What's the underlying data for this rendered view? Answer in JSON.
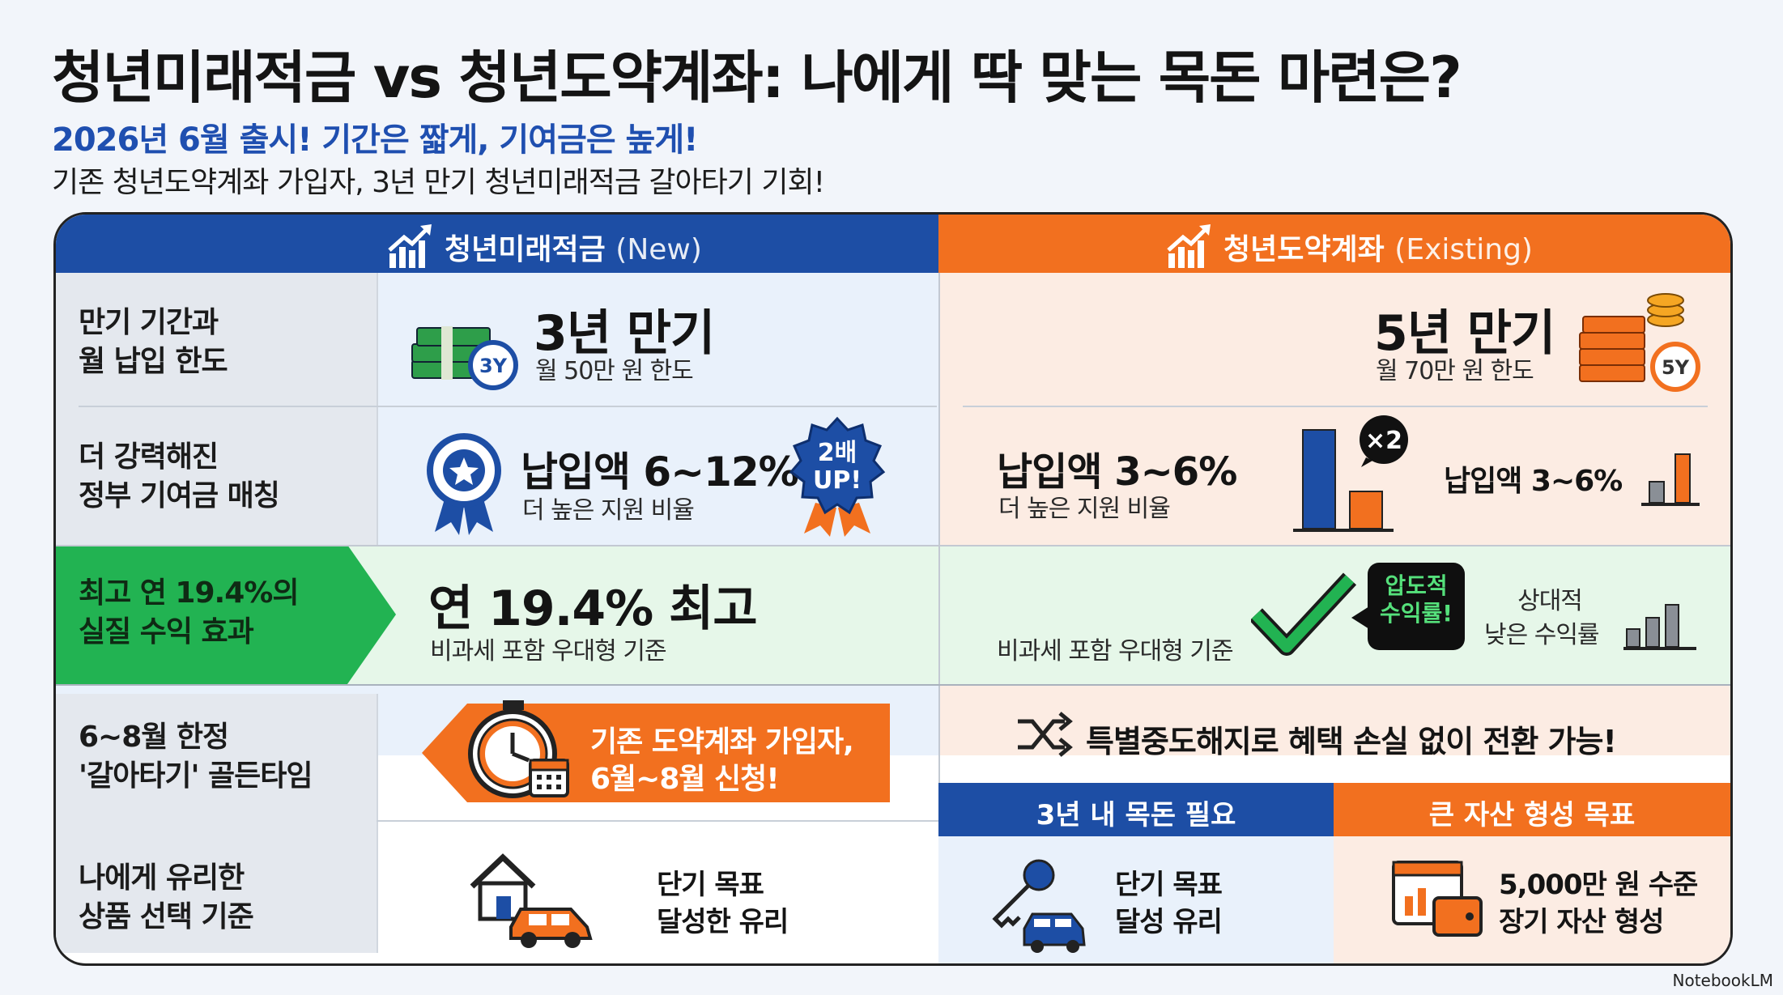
{
  "header": {
    "title": "청년미래적금 vs 청년도약계좌: 나에게 딱 맞는 목돈 마련은?",
    "subtitle": "2026년 6월 출시! 기간은 짧게, 기여금은 높게!",
    "description": "기존 청년도약계좌 가입자, 3년 만기 청년미래적금 갈아타기 기회!"
  },
  "columns": {
    "left": {
      "name": "청년미래적금",
      "tag": "(New)"
    },
    "right": {
      "name": "청년도약계좌",
      "tag": "(Existing)"
    }
  },
  "rows": {
    "term": {
      "label_line1": "만기 기간과",
      "label_line2": "월 납입 한도",
      "left_main": "3년 만기",
      "left_sub": "월 50만 원 한도",
      "left_icon_text": "3Y",
      "right_main": "5년 만기",
      "right_sub": "월 70만 원 한도",
      "right_icon_text": "5Y"
    },
    "matching": {
      "label_line1": "더 강력해진",
      "label_line2": "정부 기여금 매칭",
      "left_main": "납입액 6~12%",
      "left_sub": "더 높은 지원 비율",
      "badge_line1": "2배",
      "badge_line2": "UP!",
      "right_main": "납입액 3~6%",
      "right_sub": "더 높은 지원 비율",
      "multiplier": "×2",
      "right_side_text": "납입액 3~6%"
    },
    "return": {
      "label_line1": "최고 연 19.4%의",
      "label_line2": "실질 수익 효과",
      "left_main": "연 19.4% 최고",
      "left_sub": "비과세 포함 우대형 기준",
      "right_sub": "비과세 포함 우대형 기준",
      "bubble_line1": "압도적",
      "bubble_line2": "수익률!",
      "relative_line1": "상대적",
      "relative_line2": "낮은 수익률"
    },
    "switch": {
      "label_line1": "6~8월 한정",
      "label_line2": "'갈아타기' 골든타임",
      "banner_line1": "기존 도약계좌 가입자,",
      "banner_line2": "6월~8월 신청!",
      "right_text": "특별중도해지로 혜택 손실 없이 전환 가능!"
    },
    "choice": {
      "label_line1": "나에게 유리한",
      "label_line2": "상품 선택 기준",
      "left_line1": "단기 목표",
      "left_line2": "달성한 유리",
      "blue_header": "3년 내 목돈 필요",
      "orange_header": "큰 자산 형성 목표",
      "blue_line1": "단기 목표",
      "blue_line2": "달성 유리",
      "orange_line1": "5,000만 원 수준",
      "orange_line2": "장기 자산 형성"
    }
  },
  "footer": {
    "logo": "NotebookLM"
  },
  "colors": {
    "blue": "#1d4ea5",
    "orange": "#f2701f",
    "green": "#22b352"
  },
  "icons": [
    "growth-chart-icon",
    "money-stack-icon",
    "medal-icon",
    "badge-burst-icon",
    "bar-chart-icon",
    "checkmark-icon",
    "stopwatch-icon",
    "calendar-icon",
    "shuffle-icon",
    "house-icon",
    "car-icon",
    "key-icon",
    "wallet-icon",
    "coin-stack-icon"
  ]
}
